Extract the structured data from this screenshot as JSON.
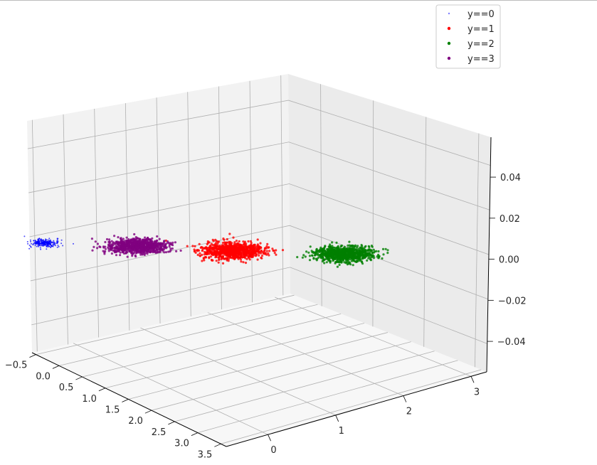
{
  "chart_data": {
    "type": "scatter",
    "projection": "3d",
    "title": "",
    "xlabel": "",
    "ylabel": "",
    "zlabel": "",
    "grid": true,
    "legend_placement": "top-right",
    "x_ticks": [
      "−0.5",
      "0.0",
      "0.5",
      "1.0",
      "1.5",
      "2.0",
      "2.5",
      "3.0",
      "3.5"
    ],
    "y_ticks": [
      "0",
      "1",
      "2",
      "3"
    ],
    "z_ticks": [
      "0.04",
      "0.02",
      "0.00",
      "−0.02",
      "−0.04"
    ],
    "xlim": [
      -0.5,
      3.7
    ],
    "ylim": [
      -0.3,
      4.0
    ],
    "zlim": [
      -0.05,
      0.05
    ],
    "series": [
      {
        "name": "y==0",
        "color": "#0000ff",
        "center": [
          -0.4,
          0.1,
          0.0
        ],
        "spread": [
          0.06,
          0.08
        ],
        "count": 260
      },
      {
        "name": "y==1",
        "color": "#ff0000",
        "center": [
          0.3,
          1.9,
          0.0
        ],
        "spread": [
          0.13,
          0.17
        ],
        "count": 900
      },
      {
        "name": "y==2",
        "color": "#008000",
        "center": [
          0.5,
          3.0,
          0.0
        ],
        "spread": [
          0.12,
          0.16
        ],
        "count": 900
      },
      {
        "name": "y==3",
        "color": "#800080",
        "center": [
          -0.2,
          1.0,
          0.0
        ],
        "spread": [
          0.12,
          0.16
        ],
        "count": 800
      }
    ]
  }
}
